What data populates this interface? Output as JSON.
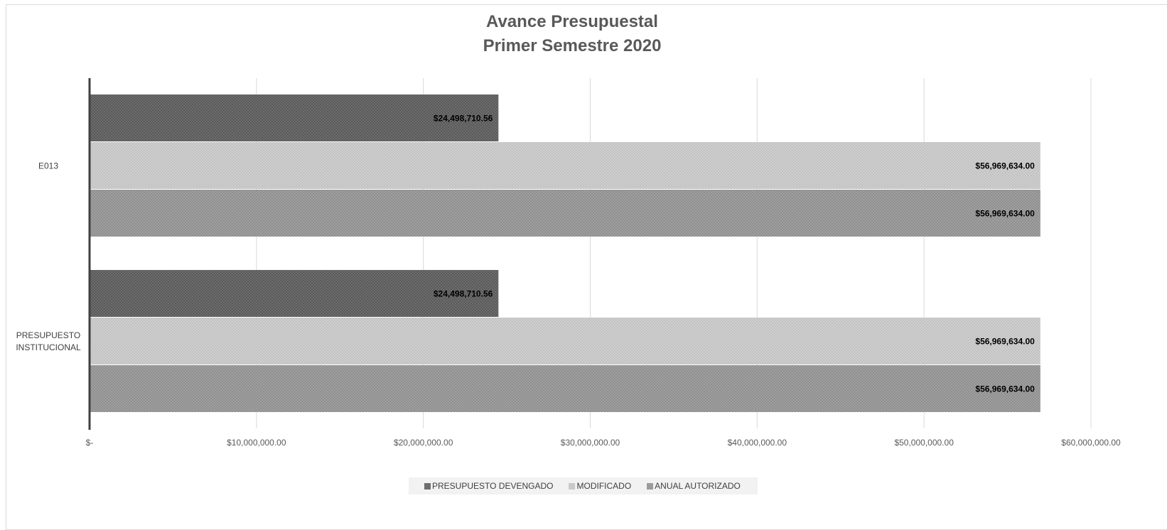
{
  "chart_data": {
    "type": "bar",
    "orientation": "horizontal",
    "title_lines": [
      "Avance Presupuestal",
      "Primer Semestre 2020"
    ],
    "categories": [
      "E013",
      "PRESUPUESTO\nINSTITUCIONAL"
    ],
    "series": [
      {
        "name": "PRESUPUESTO DEVENGADO",
        "values": [
          24498710.56,
          24498710.56
        ],
        "labels": [
          "$24,498,710.56",
          "$24,498,710.56"
        ],
        "color": "#6e6e6e"
      },
      {
        "name": "MODIFICADO",
        "values": [
          56969634.0,
          56969634.0
        ],
        "labels": [
          "$56,969,634.00",
          "$56,969,634.00"
        ],
        "color": "#c9c9c9"
      },
      {
        "name": "ANUAL AUTORIZADO",
        "values": [
          56969634.0,
          56969634.0
        ],
        "labels": [
          "$56,969,634.00",
          "$56,969,634.00"
        ],
        "color": "#9b9b9b"
      }
    ],
    "xlim": [
      0,
      60000000
    ],
    "xticks": [
      0,
      10000000,
      20000000,
      30000000,
      40000000,
      50000000,
      60000000
    ],
    "xtick_labels": [
      "$-",
      "$10,000,000.00",
      "$20,000,000.00",
      "$30,000,000.00",
      "$40,000,000.00",
      "$50,000,000.00",
      "$60,000,000.00"
    ],
    "grid": true,
    "legend_position": "bottom"
  }
}
